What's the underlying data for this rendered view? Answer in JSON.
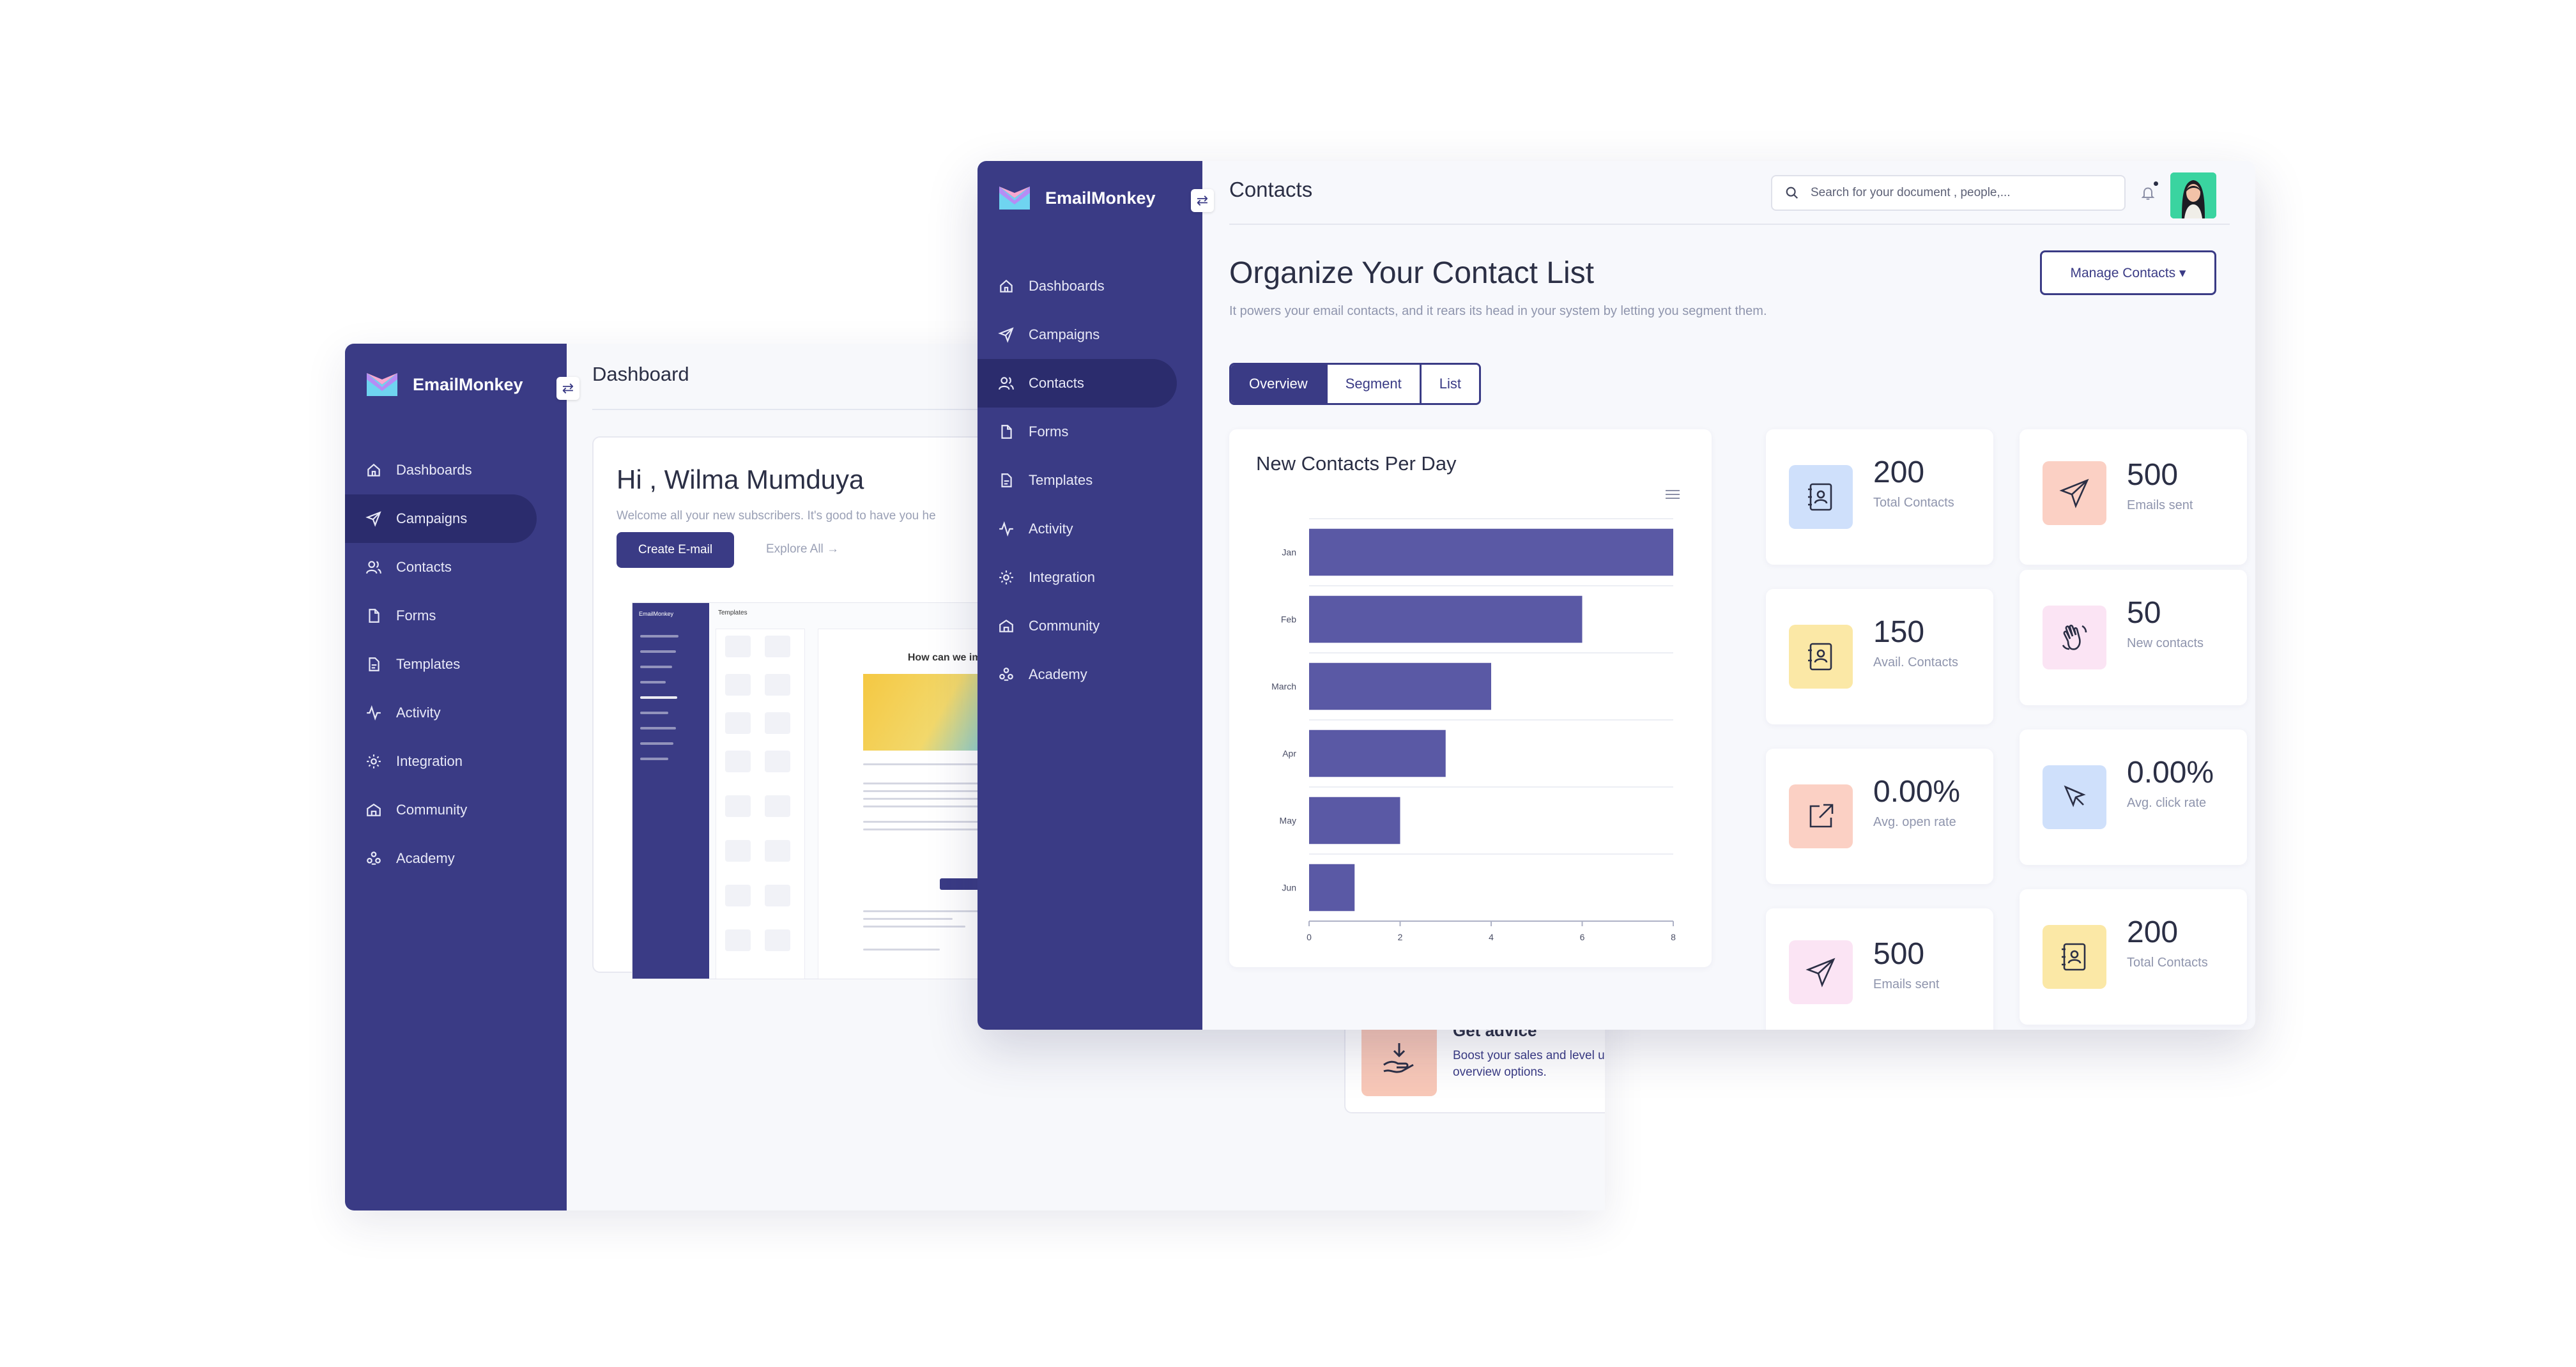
{
  "back_window": {
    "brand": "EmailMonkey",
    "nav": [
      "Dashboards",
      "Campaigns",
      "Contacts",
      "Forms",
      "Templates",
      "Activity",
      "Integration",
      "Community",
      "Academy"
    ],
    "active_nav": "Campaigns",
    "title": "Dashboard",
    "greeting": "Hi , Wilma Mumduya",
    "welcome_text": "Welcome all your new subscribers. It's good to have you he",
    "create_button": "Create E-mail",
    "explore_link": "Explore All →",
    "mini_preview": {
      "brand": "EmailMonkey",
      "panel_title": "Templates",
      "email_heading": "How can we improve"
    },
    "advice": {
      "title": "Get advice",
      "text": "Boost your sales and level up your business with our expert overview options."
    }
  },
  "front_window": {
    "brand": "EmailMonkey",
    "nav": [
      "Dashboards",
      "Campaigns",
      "Contacts",
      "Forms",
      "Templates",
      "Activity",
      "Integration",
      "Community",
      "Academy"
    ],
    "active_nav": "Contacts",
    "title": "Contacts",
    "search_placeholder": "Search for your document , people,...",
    "heading": "Organize Your Contact List",
    "subheading": "It powers your email contacts, and it rears its head in your system by letting you segment them.",
    "manage_button": "Manage Contacts ▾",
    "tabs": [
      "Overview",
      "Segment",
      "List"
    ],
    "active_tab": "Overview",
    "stats": [
      {
        "value": "200",
        "label": "Total Contacts",
        "icon": "contact-book-icon",
        "bg": "#cfe0fb"
      },
      {
        "value": "500",
        "label": "Emails sent",
        "icon": "send-icon",
        "bg": "#fbd0c4"
      },
      {
        "value": "150",
        "label": "Avail. Contacts",
        "icon": "contact-card-icon",
        "bg": "#fbe8a6"
      },
      {
        "value": "50",
        "label": "New contacts",
        "icon": "wave-hand-icon",
        "bg": "#fbe4f4"
      },
      {
        "value": "0.00%",
        "label": "Avg. open rate",
        "icon": "open-external-icon",
        "bg": "#fbd0c4"
      },
      {
        "value": "0.00%",
        "label": "Avg. click rate",
        "icon": "cursor-icon",
        "bg": "#cfe0fb"
      },
      {
        "value": "500",
        "label": "Emails sent",
        "icon": "send-icon",
        "bg": "#fbe4f4"
      },
      {
        "value": "200",
        "label": "Total Contacts",
        "icon": "contact-book-icon",
        "bg": "#fbe8a6"
      }
    ]
  },
  "chart_data": {
    "type": "bar",
    "orientation": "horizontal",
    "title": "New Contacts Per Day",
    "categories": [
      "Jan",
      "Feb",
      "March",
      "Apr",
      "May",
      "Jun"
    ],
    "values": [
      8,
      6,
      4,
      3,
      2,
      1
    ],
    "xlim": [
      0,
      8
    ],
    "xticks": [
      0,
      2,
      4,
      6,
      8
    ],
    "grid": true,
    "bar_color": "#5a59a5"
  },
  "colors": {
    "sidebar": "#3a3b85",
    "accent": "#3a3b85"
  }
}
